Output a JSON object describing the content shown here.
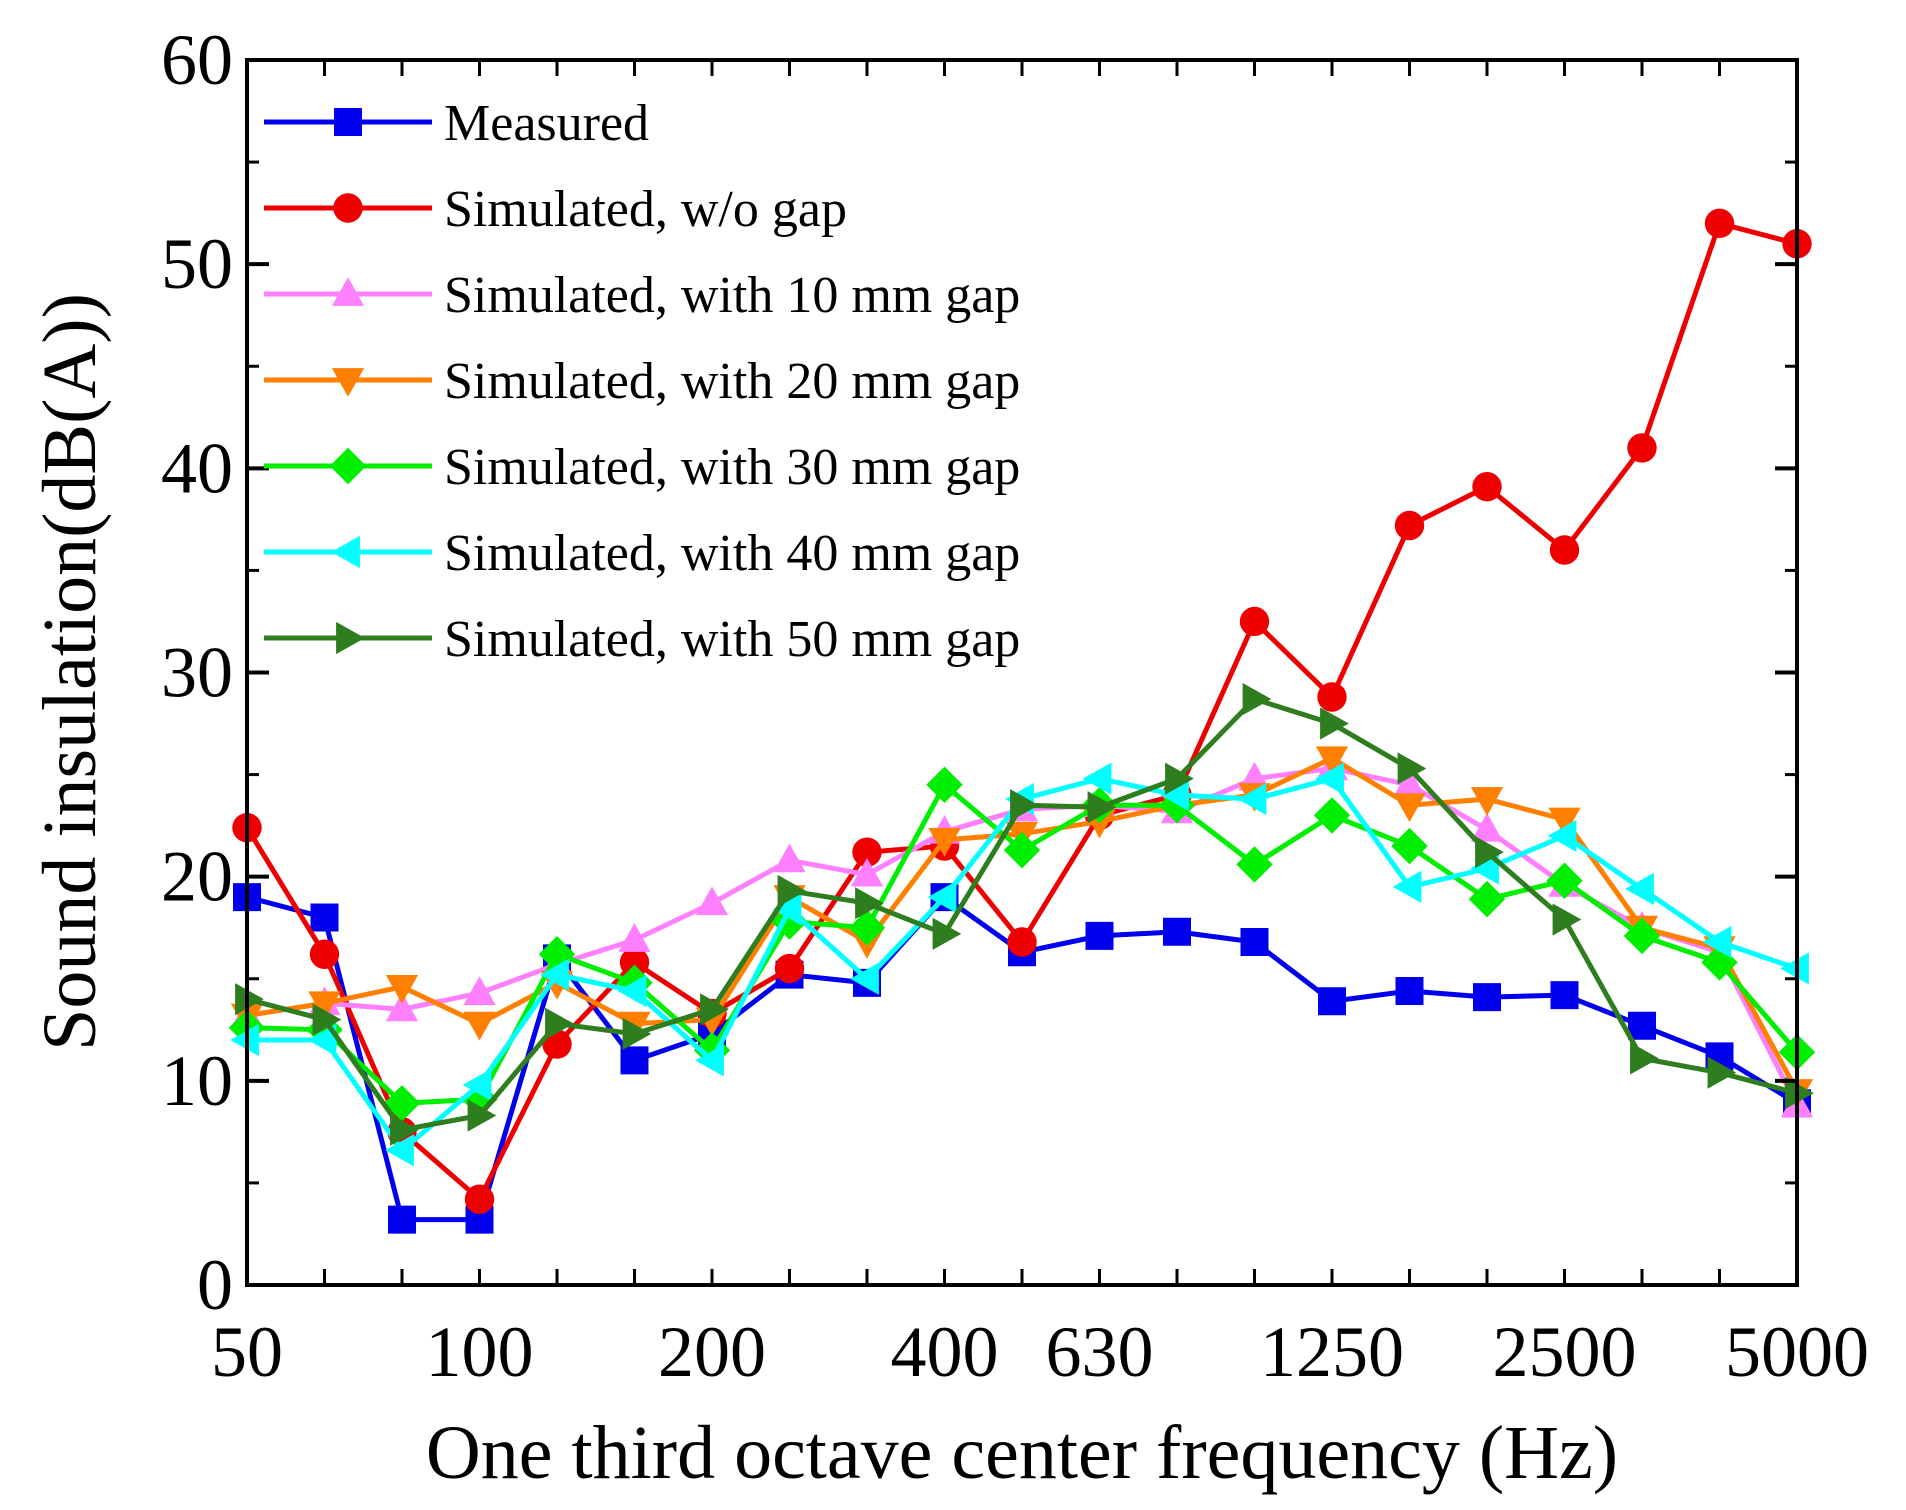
{
  "chart_data": {
    "type": "line",
    "xlabel": "One third octave center frequency (Hz)",
    "ylabel": "Sound insulation(dB(A))",
    "ylim": [
      0,
      60
    ],
    "yticks": [
      0,
      10,
      20,
      30,
      40,
      50,
      60
    ],
    "x": [
      "50",
      "63",
      "80",
      "100",
      "125",
      "160",
      "200",
      "250",
      "315",
      "400",
      "500",
      "630",
      "800",
      "1000",
      "1250",
      "1600",
      "2000",
      "2500",
      "3150",
      "4000",
      "5000"
    ],
    "xtick_labels": [
      "50",
      "100",
      "200",
      "400",
      "630",
      "1250",
      "2500",
      "5000"
    ],
    "legend_position": "top-left",
    "grid": false,
    "series": [
      {
        "name": "Measured",
        "color": "#0000ee",
        "marker": "square",
        "values": [
          19,
          18,
          3.2,
          3.2,
          16,
          11,
          12.3,
          15.2,
          14.8,
          19,
          16.3,
          17.1,
          17.3,
          16.8,
          13.9,
          14.4,
          14.1,
          14.2,
          12.7,
          11.2,
          8.9
        ]
      },
      {
        "name": "Simulated, w/o gap",
        "color": "#ee0000",
        "marker": "circle",
        "values": [
          22.4,
          16.2,
          7.5,
          4.2,
          11.8,
          15.8,
          13.3,
          15.5,
          21.2,
          21.5,
          16.8,
          23,
          24,
          32.5,
          28.8,
          37.2,
          39.1,
          36,
          41,
          52,
          51
        ]
      },
      {
        "name": "Simulated, with 10 mm gap",
        "color": "#ff80ff",
        "marker": "triangle-up",
        "values": [
          13.2,
          13.8,
          13.5,
          14.3,
          15.7,
          16.9,
          18.7,
          20.8,
          20.1,
          22.2,
          23.3,
          23.5,
          23.2,
          24.8,
          25.3,
          24.5,
          22.3,
          19.6,
          17.5,
          16.3,
          8.8
        ]
      },
      {
        "name": "Simulated, with 20 mm gap",
        "color": "#ff7f00",
        "marker": "triangle-down",
        "values": [
          13.2,
          13.8,
          14.6,
          12.8,
          14.8,
          12.8,
          13,
          19,
          16.8,
          21.8,
          22.1,
          22.7,
          23.5,
          24,
          25.8,
          23.5,
          23.8,
          22.8,
          17.5,
          16.5,
          9.5
        ]
      },
      {
        "name": "Simulated, with 30 mm gap",
        "color": "#00ee00",
        "marker": "diamond",
        "values": [
          12.6,
          12.5,
          8.9,
          9.1,
          16.2,
          14.8,
          11.5,
          17.8,
          17.5,
          24.5,
          21.3,
          23.5,
          23.5,
          20.6,
          23,
          21.5,
          18.9,
          19.8,
          17.1,
          15.8,
          11.4
        ]
      },
      {
        "name": "Simulated, with 40 mm gap",
        "color": "#00ffff",
        "marker": "triangle-left",
        "values": [
          12,
          12,
          6.6,
          9.8,
          15.2,
          14.4,
          11,
          18.4,
          15,
          19,
          23.8,
          24.8,
          24,
          23.8,
          24.8,
          19.5,
          20.4,
          22,
          19.4,
          16.8,
          15.5
        ]
      },
      {
        "name": "Simulated, with 50 mm gap",
        "color": "#2e7d1e",
        "marker": "triangle-right",
        "values": [
          14,
          13,
          7.6,
          8.3,
          12.8,
          12.3,
          13.5,
          19.3,
          18.7,
          17.2,
          23.5,
          23.4,
          24.8,
          28.7,
          27.5,
          25.3,
          21.2,
          17.9,
          11.1,
          10.4,
          9.4
        ]
      }
    ]
  }
}
